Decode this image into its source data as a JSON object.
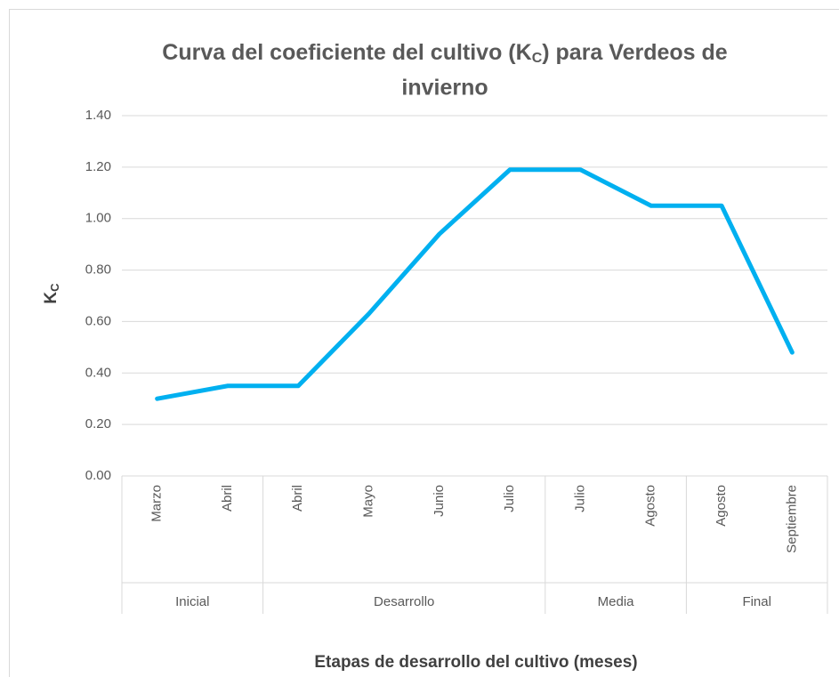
{
  "chart_data": {
    "type": "line",
    "title_parts": [
      "Curva del coeficiente del cultivo (K",
      "C",
      ") para Verdeos de",
      "invierno"
    ],
    "y_label_parts": [
      "K",
      "C"
    ],
    "x_label": "Etapas de desarrollo del cultivo (meses)",
    "categories": [
      "Marzo",
      "Abril",
      "Abril",
      "Mayo",
      "Junio",
      "Julio",
      "Julio",
      "Agosto",
      "Agosto",
      "Septiembre"
    ],
    "groups": [
      {
        "label": "Inicial",
        "size": 2
      },
      {
        "label": "Desarrollo",
        "size": 4
      },
      {
        "label": "Media",
        "size": 2
      },
      {
        "label": "Final",
        "size": 2
      }
    ],
    "series": [
      {
        "name": "Kc",
        "color": "#00b0f0",
        "values": [
          0.3,
          0.35,
          0.35,
          0.63,
          0.94,
          1.19,
          1.19,
          1.05,
          1.05,
          0.48
        ]
      }
    ],
    "ylim": [
      0,
      1.4
    ],
    "yticks": [
      {
        "value": 0,
        "label": "0.00"
      },
      {
        "value": 0.2,
        "label": "0.20"
      },
      {
        "value": 0.4,
        "label": "0.40"
      },
      {
        "value": 0.6,
        "label": "0.60"
      },
      {
        "value": 0.8,
        "label": "0.80"
      },
      {
        "value": 1.0,
        "label": "1.00"
      },
      {
        "value": 1.2,
        "label": "1.20"
      },
      {
        "value": 1.4,
        "label": "1.40"
      }
    ],
    "grid": true
  }
}
